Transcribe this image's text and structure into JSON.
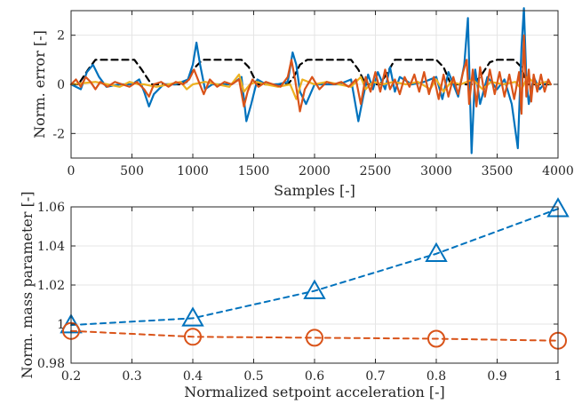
{
  "chart_data": [
    {
      "type": "line",
      "xlabel": "Samples [-]",
      "ylabel": "Norm. error [-]",
      "xlim": [
        0,
        4000
      ],
      "ylim": [
        -3,
        3
      ],
      "xticks": [
        0,
        500,
        1000,
        1500,
        2000,
        2500,
        3000,
        3500,
        4000
      ],
      "yticks": [
        -2,
        0,
        2
      ],
      "grid": true,
      "series": [
        {
          "color": "#000000",
          "style": "dashed",
          "x": [
            0,
            60,
            140,
            200,
            520,
            580,
            660,
            720,
            900,
            950,
            1020,
            1080,
            1400,
            1460,
            1530,
            1600,
            1780,
            1830,
            1880,
            1940,
            2300,
            2360,
            2420,
            2480,
            2540,
            2600,
            2660,
            2720,
            3000,
            3060,
            3120,
            3180,
            3300,
            3360,
            3440,
            3500,
            3640,
            3700,
            3740,
            3800,
            3880,
            3940
          ],
          "values": [
            0,
            0,
            0.6,
            1,
            1,
            0.6,
            0,
            0,
            0,
            0.1,
            0.7,
            1,
            1,
            0.7,
            0,
            0,
            0,
            0.3,
            0.8,
            1,
            1,
            0.6,
            0,
            0,
            0,
            0.5,
            1,
            1,
            1,
            0.7,
            0,
            0,
            0,
            0.3,
            0.9,
            1,
            1,
            0.7,
            0,
            0,
            0,
            0
          ]
        },
        {
          "color": "#0072BD",
          "style": "solid",
          "x": [
            0,
            80,
            130,
            180,
            230,
            290,
            400,
            500,
            560,
            600,
            640,
            680,
            760,
            860,
            960,
            1000,
            1030,
            1060,
            1100,
            1160,
            1240,
            1320,
            1400,
            1440,
            1480,
            1530,
            1600,
            1700,
            1780,
            1820,
            1850,
            1880,
            1930,
            2000,
            2100,
            2200,
            2300,
            2360,
            2400,
            2440,
            2480,
            2520,
            2580,
            2620,
            2660,
            2700,
            2800,
            2900,
            3000,
            3050,
            3100,
            3180,
            3230,
            3260,
            3290,
            3320,
            3360,
            3420,
            3500,
            3560,
            3620,
            3670,
            3700,
            3720,
            3740,
            3760,
            3800,
            3850,
            3900,
            3940
          ],
          "values": [
            0,
            -0.2,
            0.5,
            0.8,
            0.3,
            -0.1,
            0,
            0,
            0.2,
            -0.3,
            -0.9,
            -0.4,
            0,
            0,
            0.2,
            0.8,
            1.7,
            0.8,
            -0.2,
            0,
            0,
            0,
            0.3,
            -1.5,
            -0.8,
            0.2,
            0,
            0,
            0.1,
            1.3,
            0.8,
            -0.3,
            -0.8,
            0,
            0,
            0,
            0.2,
            -1.5,
            -0.5,
            0.4,
            -0.2,
            0.5,
            -0.2,
            0.7,
            -0.3,
            0.3,
            0,
            0.1,
            0.3,
            -0.6,
            0.5,
            -0.5,
            0.8,
            2.7,
            -2.8,
            0.6,
            -0.8,
            0.3,
            -0.2,
            0.2,
            -0.8,
            -2.6,
            1.5,
            3.1,
            0.2,
            -0.8,
            0.3,
            -0.2,
            0.1,
            0
          ]
        },
        {
          "color": "#EDB120",
          "style": "solid",
          "x": [
            0,
            100,
            200,
            300,
            400,
            480,
            550,
            600,
            700,
            800,
            900,
            950,
            1000,
            1100,
            1200,
            1300,
            1380,
            1420,
            1470,
            1520,
            1600,
            1700,
            1800,
            1850,
            1900,
            2000,
            2100,
            2200,
            2300,
            2380,
            2420,
            2480,
            2560,
            2650,
            2750,
            2850,
            2950,
            3000,
            3060,
            3120,
            3200,
            3300,
            3380,
            3450,
            3550,
            3650,
            3700,
            3750,
            3820,
            3900,
            3940
          ],
          "values": [
            0,
            0.05,
            0.1,
            0,
            -0.1,
            0.1,
            0,
            0,
            -0.1,
            0,
            0.1,
            -0.2,
            0,
            0.1,
            0,
            -0.1,
            0.4,
            -0.3,
            0,
            0.1,
            0,
            -0.1,
            0,
            -0.6,
            0.2,
            0,
            0.1,
            0,
            -0.1,
            0.3,
            -0.2,
            0.1,
            0,
            0.1,
            0,
            0.1,
            -0.2,
            0.2,
            -0.3,
            0.1,
            0,
            0.2,
            -0.2,
            0.1,
            0,
            0.1,
            -0.2,
            0.3,
            0,
            0.1,
            0
          ]
        },
        {
          "color": "#D95319",
          "style": "solid",
          "x": [
            0,
            40,
            80,
            120,
            160,
            200,
            240,
            300,
            360,
            420,
            480,
            540,
            600,
            640,
            680,
            740,
            800,
            860,
            920,
            970,
            1010,
            1050,
            1090,
            1140,
            1200,
            1260,
            1320,
            1380,
            1420,
            1450,
            1490,
            1540,
            1600,
            1660,
            1720,
            1780,
            1810,
            1840,
            1880,
            1920,
            1980,
            2040,
            2100,
            2160,
            2220,
            2280,
            2340,
            2380,
            2420,
            2460,
            2500,
            2540,
            2580,
            2620,
            2660,
            2700,
            2740,
            2780,
            2820,
            2860,
            2900,
            2940,
            2980,
            3020,
            3060,
            3100,
            3140,
            3180,
            3220,
            3250,
            3270,
            3300,
            3330,
            3360,
            3400,
            3440,
            3480,
            3520,
            3560,
            3600,
            3640,
            3680,
            3700,
            3720,
            3740,
            3760,
            3780,
            3800,
            3830,
            3860,
            3890,
            3920,
            3940
          ],
          "values": [
            0,
            0.2,
            -0.1,
            0.3,
            0.1,
            -0.2,
            0.1,
            -0.1,
            0.1,
            0,
            -0.1,
            0.1,
            -0.2,
            -0.5,
            0,
            0.1,
            -0.1,
            0.1,
            0,
            0.2,
            0.6,
            0.1,
            -0.4,
            0.2,
            -0.1,
            0.1,
            0,
            0.2,
            -0.9,
            -0.3,
            0.2,
            -0.1,
            0.1,
            0,
            -0.1,
            0.3,
            1.0,
            0.2,
            -1.1,
            -0.2,
            0.3,
            -0.2,
            0.1,
            0,
            0.1,
            -0.1,
            0.2,
            -0.8,
            0.3,
            -0.3,
            0.5,
            -0.3,
            0.6,
            -0.2,
            0.2,
            -0.4,
            0.3,
            -0.1,
            0.4,
            -0.3,
            0.5,
            -0.4,
            0.3,
            -0.6,
            0.4,
            -0.5,
            0.3,
            -0.4,
            0.5,
            1.0,
            -0.8,
            0.6,
            -0.9,
            0.7,
            -0.5,
            0.6,
            -0.4,
            0.5,
            -0.5,
            0.4,
            -0.6,
            0.5,
            -1.2,
            2.0,
            -0.5,
            0.6,
            -0.7,
            0.4,
            -0.3,
            0.4,
            -0.3,
            0.2,
            0
          ]
        }
      ]
    },
    {
      "type": "line",
      "xlabel": "Normalized setpoint acceleration [-]",
      "ylabel": "Norm. mass parameter [-]",
      "xlim": [
        0.2,
        1
      ],
      "ylim": [
        0.98,
        1.06
      ],
      "xticks": [
        0.2,
        0.3,
        0.4,
        0.5,
        0.6,
        0.7,
        0.8,
        0.9,
        1
      ],
      "yticks": [
        0.98,
        1,
        1.02,
        1.04,
        1.06
      ],
      "grid": true,
      "series": [
        {
          "color": "#0072BD",
          "style": "dashed",
          "marker": "triangle",
          "x": [
            0.2,
            0.4,
            0.6,
            0.8,
            1.0
          ],
          "values": [
            0.9995,
            1.003,
            1.017,
            1.036,
            1.059
          ]
        },
        {
          "color": "#D95319",
          "style": "dashed",
          "marker": "circle",
          "x": [
            0.2,
            0.4,
            0.6,
            0.8,
            1.0
          ],
          "values": [
            0.9965,
            0.9935,
            0.993,
            0.9925,
            0.9915
          ]
        }
      ]
    }
  ]
}
